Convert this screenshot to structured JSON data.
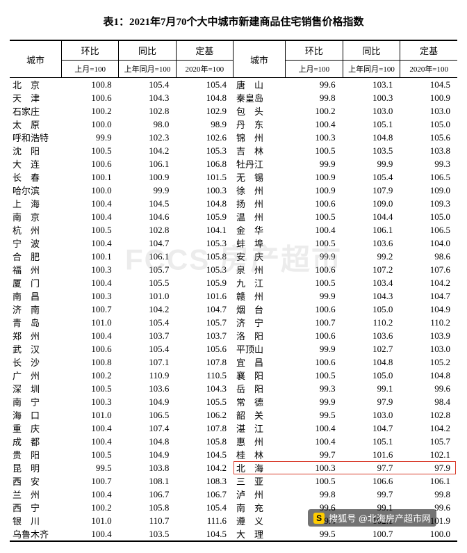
{
  "title": "表1：2021年7月70个大中城市新建商品住宅销售价格指数",
  "headers": {
    "city": "城市",
    "mom": "环比",
    "yoy": "同比",
    "fixed": "定基",
    "mom_sub": "上月=100",
    "yoy_sub": "上年同月=100",
    "fixed_sub": "2020年=100"
  },
  "left": [
    {
      "city": "北　京",
      "v": [
        "100.8",
        "105.4",
        "105.4"
      ]
    },
    {
      "city": "天　津",
      "v": [
        "100.6",
        "104.3",
        "104.8"
      ]
    },
    {
      "city": "石家庄",
      "v": [
        "100.2",
        "102.8",
        "102.9"
      ]
    },
    {
      "city": "太　原",
      "v": [
        "100.0",
        "98.0",
        "98.9"
      ]
    },
    {
      "city": "呼和浩特",
      "v": [
        "99.9",
        "102.3",
        "102.6"
      ]
    },
    {
      "city": "沈　阳",
      "v": [
        "100.5",
        "104.2",
        "105.3"
      ]
    },
    {
      "city": "大　连",
      "v": [
        "100.6",
        "106.1",
        "106.8"
      ]
    },
    {
      "city": "长　春",
      "v": [
        "100.1",
        "100.9",
        "101.5"
      ]
    },
    {
      "city": "哈尔滨",
      "v": [
        "100.0",
        "99.9",
        "100.3"
      ]
    },
    {
      "city": "上　海",
      "v": [
        "100.4",
        "104.5",
        "104.8"
      ]
    },
    {
      "city": "南　京",
      "v": [
        "100.4",
        "104.6",
        "105.9"
      ]
    },
    {
      "city": "杭　州",
      "v": [
        "100.5",
        "102.8",
        "104.1"
      ]
    },
    {
      "city": "宁　波",
      "v": [
        "100.4",
        "104.7",
        "105.3"
      ]
    },
    {
      "city": "合　肥",
      "v": [
        "100.1",
        "106.1",
        "105.8"
      ]
    },
    {
      "city": "福　州",
      "v": [
        "100.3",
        "105.7",
        "105.3"
      ]
    },
    {
      "city": "厦　门",
      "v": [
        "100.4",
        "105.5",
        "105.9"
      ]
    },
    {
      "city": "南　昌",
      "v": [
        "100.3",
        "101.0",
        "101.6"
      ]
    },
    {
      "city": "济　南",
      "v": [
        "100.7",
        "104.2",
        "104.7"
      ]
    },
    {
      "city": "青　岛",
      "v": [
        "101.0",
        "105.4",
        "105.7"
      ]
    },
    {
      "city": "郑　州",
      "v": [
        "100.4",
        "103.7",
        "103.7"
      ]
    },
    {
      "city": "武　汉",
      "v": [
        "100.6",
        "105.4",
        "105.6"
      ]
    },
    {
      "city": "长　沙",
      "v": [
        "100.8",
        "107.1",
        "107.8"
      ]
    },
    {
      "city": "广　州",
      "v": [
        "100.2",
        "110.9",
        "110.5"
      ]
    },
    {
      "city": "深　圳",
      "v": [
        "100.5",
        "103.6",
        "104.3"
      ]
    },
    {
      "city": "南　宁",
      "v": [
        "100.3",
        "104.9",
        "105.5"
      ]
    },
    {
      "city": "海　口",
      "v": [
        "101.0",
        "106.5",
        "106.2"
      ]
    },
    {
      "city": "重　庆",
      "v": [
        "100.4",
        "107.4",
        "107.8"
      ]
    },
    {
      "city": "成　都",
      "v": [
        "100.4",
        "104.8",
        "105.8"
      ]
    },
    {
      "city": "贵　阳",
      "v": [
        "100.5",
        "104.9",
        "104.5"
      ]
    },
    {
      "city": "昆　明",
      "v": [
        "99.5",
        "103.8",
        "104.2"
      ]
    },
    {
      "city": "西　安",
      "v": [
        "100.7",
        "108.1",
        "108.3"
      ]
    },
    {
      "city": "兰　州",
      "v": [
        "100.4",
        "106.7",
        "106.7"
      ]
    },
    {
      "city": "西　宁",
      "v": [
        "100.2",
        "105.8",
        "105.4"
      ]
    },
    {
      "city": "银　川",
      "v": [
        "101.0",
        "110.7",
        "111.6"
      ]
    },
    {
      "city": "乌鲁木齐",
      "v": [
        "100.4",
        "103.5",
        "104.5"
      ]
    }
  ],
  "right": [
    {
      "city": "唐　山",
      "v": [
        "99.6",
        "103.1",
        "104.5"
      ]
    },
    {
      "city": "秦皇岛",
      "v": [
        "99.8",
        "100.3",
        "100.9"
      ]
    },
    {
      "city": "包　头",
      "v": [
        "100.2",
        "103.0",
        "103.0"
      ]
    },
    {
      "city": "丹　东",
      "v": [
        "100.4",
        "105.1",
        "105.0"
      ]
    },
    {
      "city": "锦　州",
      "v": [
        "100.3",
        "104.8",
        "105.6"
      ]
    },
    {
      "city": "吉　林",
      "v": [
        "100.5",
        "103.5",
        "103.8"
      ]
    },
    {
      "city": "牡丹江",
      "v": [
        "99.9",
        "99.9",
        "99.3"
      ]
    },
    {
      "city": "无　锡",
      "v": [
        "100.9",
        "105.4",
        "106.5"
      ]
    },
    {
      "city": "徐　州",
      "v": [
        "100.9",
        "107.9",
        "109.0"
      ]
    },
    {
      "city": "扬　州",
      "v": [
        "100.6",
        "109.0",
        "109.3"
      ]
    },
    {
      "city": "温　州",
      "v": [
        "100.5",
        "104.4",
        "105.0"
      ]
    },
    {
      "city": "金　华",
      "v": [
        "100.4",
        "106.1",
        "106.5"
      ]
    },
    {
      "city": "蚌　埠",
      "v": [
        "100.5",
        "103.6",
        "104.0"
      ]
    },
    {
      "city": "安　庆",
      "v": [
        "99.9",
        "99.2",
        "98.6"
      ]
    },
    {
      "city": "泉　州",
      "v": [
        "100.6",
        "107.2",
        "107.6"
      ]
    },
    {
      "city": "九　江",
      "v": [
        "100.5",
        "103.4",
        "104.2"
      ]
    },
    {
      "city": "赣　州",
      "v": [
        "99.9",
        "104.3",
        "104.7"
      ]
    },
    {
      "city": "烟　台",
      "v": [
        "100.6",
        "105.0",
        "104.9"
      ]
    },
    {
      "city": "济　宁",
      "v": [
        "100.7",
        "110.2",
        "110.2"
      ]
    },
    {
      "city": "洛　阳",
      "v": [
        "100.6",
        "103.6",
        "103.9"
      ]
    },
    {
      "city": "平顶山",
      "v": [
        "99.9",
        "102.7",
        "103.0"
      ]
    },
    {
      "city": "宜　昌",
      "v": [
        "100.6",
        "104.8",
        "105.2"
      ]
    },
    {
      "city": "襄　阳",
      "v": [
        "100.5",
        "105.0",
        "104.8"
      ]
    },
    {
      "city": "岳　阳",
      "v": [
        "99.3",
        "99.1",
        "99.6"
      ]
    },
    {
      "city": "常　德",
      "v": [
        "99.9",
        "97.9",
        "98.4"
      ]
    },
    {
      "city": "韶　关",
      "v": [
        "99.5",
        "103.0",
        "102.8"
      ]
    },
    {
      "city": "湛　江",
      "v": [
        "100.4",
        "104.7",
        "104.2"
      ]
    },
    {
      "city": "惠　州",
      "v": [
        "100.4",
        "105.1",
        "105.7"
      ]
    },
    {
      "city": "桂　林",
      "v": [
        "99.7",
        "101.6",
        "102.1"
      ]
    },
    {
      "city": "北　海",
      "v": [
        "100.3",
        "97.7",
        "97.9"
      ],
      "hl": true
    },
    {
      "city": "三　亚",
      "v": [
        "100.5",
        "106.6",
        "106.1"
      ]
    },
    {
      "city": "泸　州",
      "v": [
        "99.8",
        "99.7",
        "99.8"
      ]
    },
    {
      "city": "南　充",
      "v": [
        "99.6",
        "99.1",
        "99.6"
      ]
    },
    {
      "city": "遵　义",
      "v": [
        "99.4",
        "102.1",
        "101.9"
      ]
    },
    {
      "city": "大　理",
      "v": [
        "99.5",
        "100.7",
        "100.0"
      ]
    }
  ],
  "watermark": "FCCS 房产超市",
  "footer_tag": "搜狐号 @北海房产超市网"
}
